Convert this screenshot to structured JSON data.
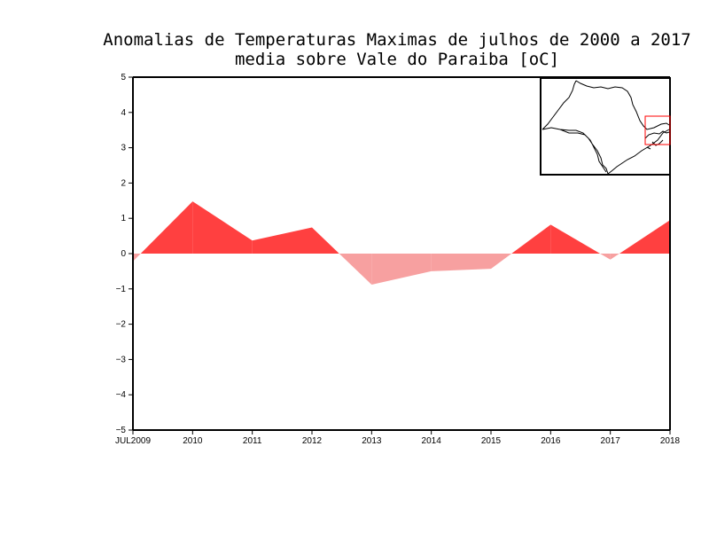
{
  "chart_data": {
    "type": "area",
    "title": "Anomalias de Temperaturas Maximas de julhos de 2000 a 2017",
    "subtitle": "media sobre Vale do Paraiba [oC]",
    "x_tick_labels": [
      "JUL2009",
      "2010",
      "2011",
      "2012",
      "2013",
      "2014",
      "2015",
      "2016",
      "2017",
      "2018"
    ],
    "x_tick_positions": [
      2009,
      2010,
      2011,
      2012,
      2013,
      2014,
      2015,
      2016,
      2017,
      2018
    ],
    "y_tick_labels": [
      "5",
      "4",
      "3",
      "2",
      "1",
      "0",
      "-1",
      "-2",
      "-3",
      "-4",
      "-5"
    ],
    "xlim": [
      2009,
      2018
    ],
    "ylim": [
      -5,
      5
    ],
    "x": [
      2009,
      2010,
      2011,
      2012,
      2013,
      2014,
      2015,
      2016,
      2017,
      2018
    ],
    "values": [
      -0.22,
      1.48,
      0.37,
      0.74,
      -0.88,
      -0.5,
      -0.43,
      0.82,
      -0.17,
      0.95
    ],
    "positive_color": "#ff4040",
    "negative_color": "#f7a0a0",
    "grid": false,
    "inset_map": {
      "description_icon": "sao-paulo-state-map-icon",
      "highlight_color": "#ff0000"
    }
  }
}
